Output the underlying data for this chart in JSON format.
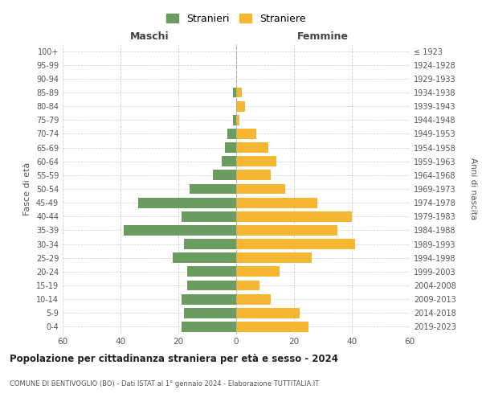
{
  "age_groups": [
    "0-4",
    "5-9",
    "10-14",
    "15-19",
    "20-24",
    "25-29",
    "30-34",
    "35-39",
    "40-44",
    "45-49",
    "50-54",
    "55-59",
    "60-64",
    "65-69",
    "70-74",
    "75-79",
    "80-84",
    "85-89",
    "90-94",
    "95-99",
    "100+"
  ],
  "birth_years": [
    "2019-2023",
    "2014-2018",
    "2009-2013",
    "2004-2008",
    "1999-2003",
    "1994-1998",
    "1989-1993",
    "1984-1988",
    "1979-1983",
    "1974-1978",
    "1969-1973",
    "1964-1968",
    "1959-1963",
    "1954-1958",
    "1949-1953",
    "1944-1948",
    "1939-1943",
    "1934-1938",
    "1929-1933",
    "1924-1928",
    "≤ 1923"
  ],
  "maschi": [
    19,
    18,
    19,
    17,
    17,
    22,
    18,
    39,
    19,
    34,
    16,
    8,
    5,
    4,
    3,
    1,
    0,
    1,
    0,
    0,
    0
  ],
  "femmine": [
    25,
    22,
    12,
    8,
    15,
    26,
    41,
    35,
    40,
    28,
    17,
    12,
    14,
    11,
    7,
    1,
    3,
    2,
    0,
    0,
    0
  ],
  "maschi_color": "#6a9c5f",
  "femmine_color": "#f5b731",
  "background_color": "#ffffff",
  "grid_color": "#cccccc",
  "title": "Popolazione per cittadinanza straniera per età e sesso - 2024",
  "subtitle": "COMUNE DI BENTIVOGLIO (BO) - Dati ISTAT al 1° gennaio 2024 - Elaborazione TUTTITALIA.IT",
  "xlabel_left": "Maschi",
  "xlabel_right": "Femmine",
  "ylabel_left": "Fasce di età",
  "ylabel_right": "Anni di nascita",
  "legend_maschi": "Stranieri",
  "legend_femmine": "Straniere",
  "xlim": 60,
  "bar_height": 0.75
}
